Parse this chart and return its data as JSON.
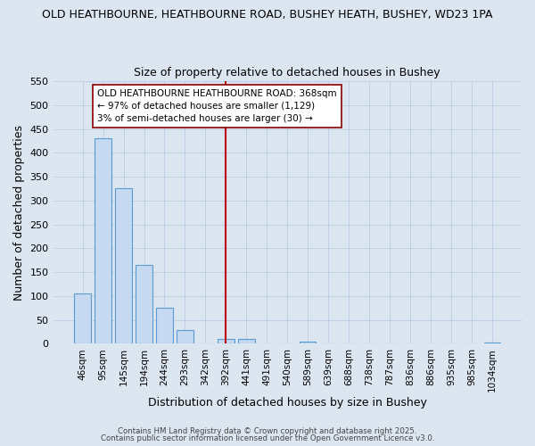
{
  "title1": "OLD HEATHBOURNE, HEATHBOURNE ROAD, BUSHEY HEATH, BUSHEY, WD23 1PA",
  "title2": "Size of property relative to detached houses in Bushey",
  "xlabel": "Distribution of detached houses by size in Bushey",
  "ylabel": "Number of detached properties",
  "categories": [
    "46sqm",
    "95sqm",
    "145sqm",
    "194sqm",
    "244sqm",
    "293sqm",
    "342sqm",
    "392sqm",
    "441sqm",
    "491sqm",
    "540sqm",
    "589sqm",
    "639sqm",
    "688sqm",
    "738sqm",
    "787sqm",
    "836sqm",
    "886sqm",
    "935sqm",
    "985sqm",
    "1034sqm"
  ],
  "values": [
    105,
    430,
    325,
    165,
    75,
    28,
    0,
    10,
    10,
    0,
    0,
    5,
    0,
    0,
    0,
    0,
    0,
    0,
    0,
    0,
    3
  ],
  "bar_color": "#c5d9f0",
  "bar_edge_color": "#5b9bd5",
  "vline_index": 7,
  "vline_color": "#c00000",
  "ylim": [
    0,
    550
  ],
  "yticks": [
    0,
    50,
    100,
    150,
    200,
    250,
    300,
    350,
    400,
    450,
    500,
    550
  ],
  "legend_title": "OLD HEATHBOURNE HEATHBOURNE ROAD: 368sqm",
  "legend_line1": "← 97% of detached houses are smaller (1,129)",
  "legend_line2": "3% of semi-detached houses are larger (30) →",
  "legend_box_color": "#ffffff",
  "legend_box_edge": "#8b0000",
  "bg_color": "#dce6f1",
  "footer1": "Contains HM Land Registry data © Crown copyright and database right 2025.",
  "footer2": "Contains public sector information licensed under the Open Government Licence v3.0."
}
